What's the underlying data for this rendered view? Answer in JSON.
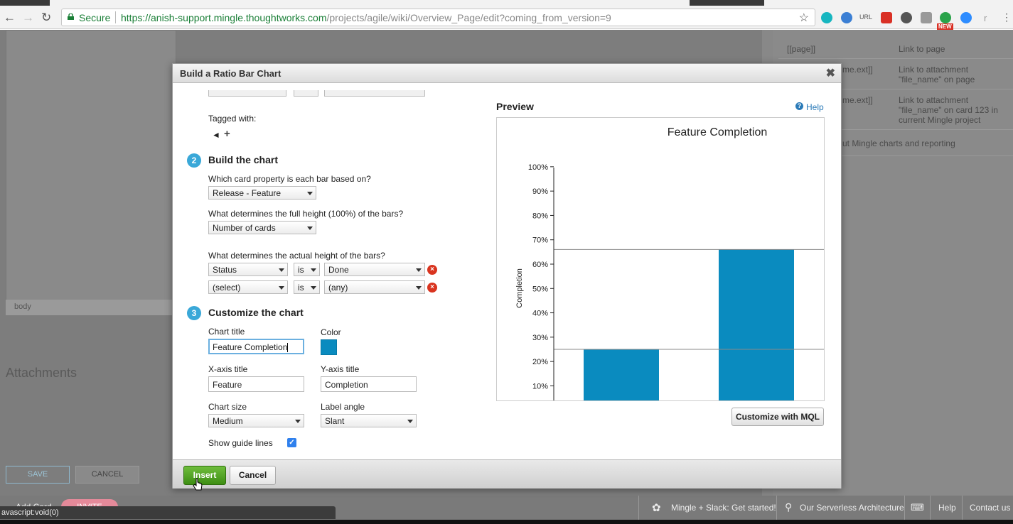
{
  "browser": {
    "secure_label": "Secure",
    "url_host": "https://anish-support.mingle.thoughtworks.com",
    "url_path": "/projects/agile/wiki/Overview_Page/edit?coming_from_version=9",
    "ext_url_label": "URL",
    "ext_new_badge": "NEW",
    "ext_last": "r"
  },
  "page": {
    "body_label": "body",
    "attachments_heading": "Attachments",
    "save_label": "SAVE",
    "cancel_label": "CANCEL"
  },
  "help_panel": {
    "rows": [
      {
        "syntax": "[[page]]",
        "desc": "Link to page"
      },
      {
        "syntax": "me.ext]]",
        "desc": "Link to attachment \"file_name\" on page"
      },
      {
        "syntax": "me.ext]]",
        "desc": "Link to attachment \"file_name\" on card 123 in current Mingle project"
      }
    ],
    "footer_link": "ut Mingle charts and reporting"
  },
  "bottom_bar": {
    "add_card": "Add Card",
    "invite": "INVITE",
    "slack": "Mingle + Slack: Get started!",
    "serverless": "Our Serverless Architecture",
    "help": "Help",
    "contact": "Contact us",
    "status_tip": "avascript:void(0)"
  },
  "dialog": {
    "title": "Build a Ratio Bar Chart",
    "tagged_with": "Tagged with:",
    "step2": {
      "num": "2",
      "title": "Build the chart",
      "q_bar_property": "Which card property is each bar based on?",
      "bar_property": "Release - Feature",
      "q_full_height": "What determines the full height (100%) of the bars?",
      "full_height": "Number of cards",
      "q_actual_height": "What determines the actual height of the bars?",
      "conditions": [
        {
          "property": "Status",
          "op": "is",
          "value": "Done"
        },
        {
          "property": "(select)",
          "op": "is",
          "value": "(any)"
        }
      ]
    },
    "step3": {
      "num": "3",
      "title": "Customize the chart",
      "chart_title_label": "Chart title",
      "chart_title_value": "Feature Completion",
      "color_label": "Color",
      "color_value": "#0a8bbf",
      "xaxis_label": "X-axis title",
      "xaxis_value": "Feature",
      "yaxis_label": "Y-axis title",
      "yaxis_value": "Completion",
      "size_label": "Chart size",
      "size_value": "Medium",
      "angle_label": "Label angle",
      "angle_value": "Slant",
      "guides_label": "Show guide lines",
      "guides_checked": true
    },
    "preview_label": "Preview",
    "help_label": "Help",
    "mql_button": "Customize with MQL",
    "insert_button": "Insert",
    "cancel_button": "Cancel"
  },
  "chart_data": {
    "type": "bar",
    "title": "Feature Completion",
    "xlabel": "",
    "ylabel": "Completion",
    "ylim": [
      4,
      102
    ],
    "yticks": [
      10,
      20,
      30,
      40,
      50,
      60,
      70,
      80,
      90,
      100
    ],
    "ytick_labels": [
      "10%",
      "20%",
      "30%",
      "40%",
      "50%",
      "60%",
      "70%",
      "80%",
      "90%",
      "100%"
    ],
    "guide_lines": [
      25,
      66
    ],
    "values": [
      25,
      66
    ],
    "color": "#0a8bbf"
  }
}
